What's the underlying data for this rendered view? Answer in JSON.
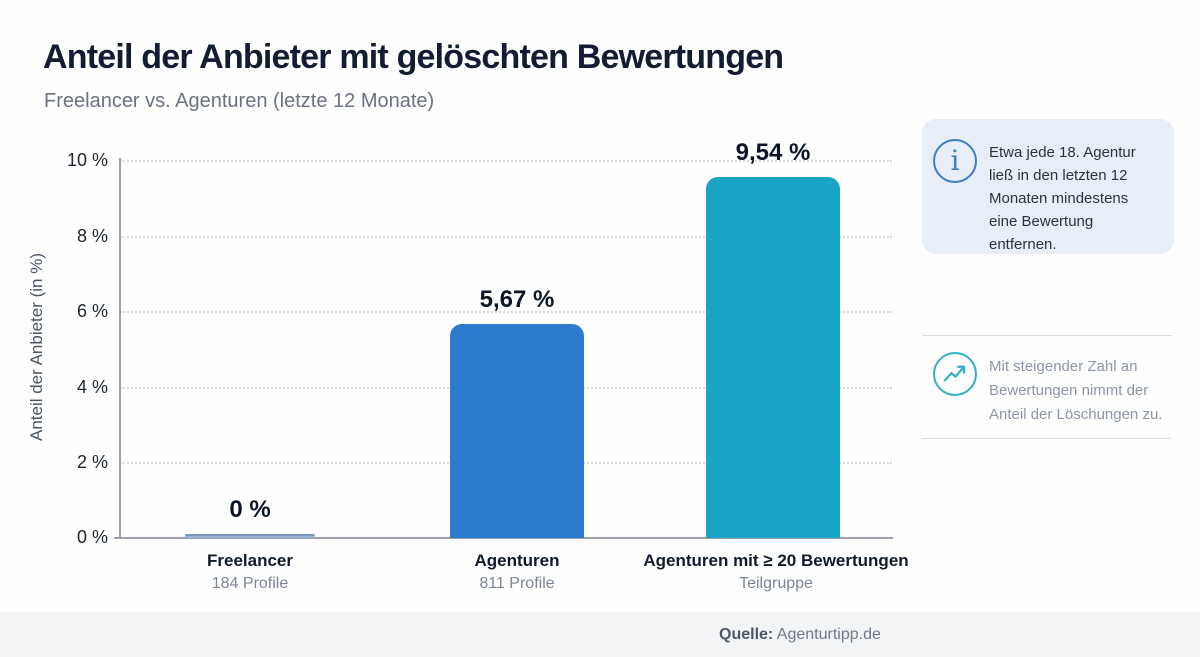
{
  "header": {
    "title": "Anteil der Anbieter mit gelöschten Bewertungen",
    "subtitle": "Freelancer vs. Agenturen (letzte 12 Monate)"
  },
  "chart_data": {
    "type": "bar",
    "title": "Anteil der Anbieter mit gelöschten Bewertungen",
    "subtitle": "Freelancer vs. Agenturen (letzte 12 Monate)",
    "ylabel": "Anteil der Anbieter (in %)",
    "xlabel": "",
    "ylim": [
      0,
      10
    ],
    "ytick_labels": [
      "10 %",
      "8 %",
      "6 %",
      "4 %",
      "2 %",
      "0 %"
    ],
    "grid": "horizontal-dotted",
    "legend": "none",
    "categories": [
      "Freelancer",
      "Agenturen",
      "Agenturen mit ≥ 20 Bewertungen"
    ],
    "category_sublabels": [
      "184 Profile",
      "811 Profile",
      "Teilgruppe"
    ],
    "values": [
      0.05,
      5.67,
      9.54
    ],
    "value_labels": [
      "0 %",
      "5,67 %",
      "9,54 %"
    ],
    "bar_colors": [
      "#9cb3d3",
      "#2b7ccf",
      "#1aa4c6"
    ]
  },
  "annotations": {
    "info_card": {
      "icon": "info-icon",
      "icon_glyph": "i",
      "icon_color": "#3a7fc1",
      "bg_color": "#e8eef8",
      "text": "Etwa jede 18. Agentur ließ in den letzten 12 Monaten mindestens eine Bewertung entfernen."
    },
    "trend_note": {
      "icon": "trend-up-icon",
      "icon_color": "#2fb0c7",
      "text": "Mit steigender Zahl an Bewertungen nimmt der Anteil der Löschungen zu."
    }
  },
  "footer": {
    "source_label": "Quelle:",
    "source_value": " Agenturtipp.de"
  }
}
